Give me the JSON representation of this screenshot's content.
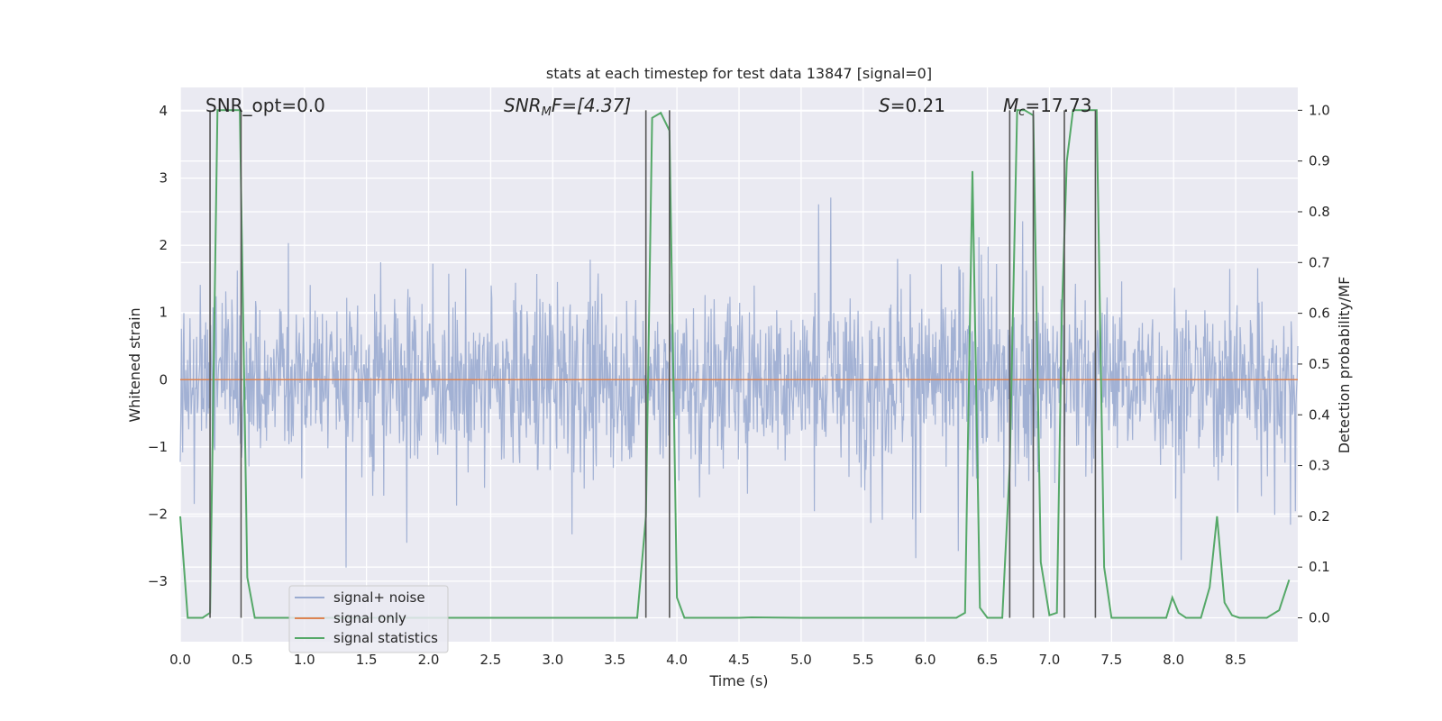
{
  "chart_data": {
    "type": "line",
    "title": "stats at each timestep for test data 13847 [signal=0]",
    "xlabel": "Time (s)",
    "ylabel": "Whitened strain",
    "y2label": "Detection probability/MF",
    "xlim": [
      0.0,
      9.0
    ],
    "ylim": [
      -3.9,
      4.35
    ],
    "y2lim": [
      -0.047,
      1.045
    ],
    "xticks": [
      "0.0",
      "0.5",
      "1.0",
      "1.5",
      "2.0",
      "2.5",
      "3.0",
      "3.5",
      "4.0",
      "4.5",
      "5.0",
      "5.5",
      "6.0",
      "6.5",
      "7.0",
      "7.5",
      "8.0",
      "8.5"
    ],
    "yticks": [
      "4",
      "3",
      "2",
      "1",
      "0",
      "−1",
      "−2",
      "−3"
    ],
    "y2ticks": [
      "1.0",
      "0.9",
      "0.8",
      "0.7",
      "0.6",
      "0.5",
      "0.4",
      "0.3",
      "0.2",
      "0.1",
      "0.0"
    ],
    "grid": true,
    "legend_position": "lower-left",
    "annotations": {
      "snr_opt": "SNR_opt=0.0",
      "snr_mf_main": "SNR",
      "snr_mf_sub": "M",
      "snr_mf_rest": "F=[4.37]",
      "s_main": "S",
      "s_rest": "=0.21",
      "mc_main": "M",
      "mc_sub": "c",
      "mc_rest": "=17.73"
    },
    "series": [
      {
        "name": "signal+ noise",
        "color": "#9aabd0",
        "description": "dense whitened noise, roughly within ±1.3, spikes to about ±3.5",
        "amplitude_core": 1.3,
        "spike_max": 4.0,
        "spike_min": -3.5
      },
      {
        "name": "signal only",
        "color": "#dd8452",
        "x": [
          0.0,
          9.0
        ],
        "y": [
          0.0,
          0.0
        ]
      },
      {
        "name": "signal statistics",
        "color": "#55a868",
        "axis": "right",
        "x": [
          0.0,
          0.06,
          0.18,
          0.24,
          0.3,
          0.36,
          0.42,
          0.48,
          0.54,
          0.6,
          1.0,
          2.0,
          3.0,
          3.5,
          3.68,
          3.75,
          3.8,
          3.87,
          3.94,
          4.0,
          4.06,
          4.5,
          4.6,
          5.0,
          5.5,
          6.0,
          6.25,
          6.32,
          6.38,
          6.44,
          6.5,
          6.62,
          6.68,
          6.74,
          6.8,
          6.87,
          6.93,
          7.0,
          7.06,
          7.1,
          7.14,
          7.19,
          7.26,
          7.34,
          7.38,
          7.44,
          7.5,
          7.6,
          7.94,
          7.99,
          8.04,
          8.1,
          8.16,
          8.22,
          8.29,
          8.35,
          8.41,
          8.47,
          8.53,
          8.6,
          8.75,
          8.85,
          8.93
        ],
        "y": [
          0.2,
          0.0,
          0.0,
          0.01,
          1.0,
          1.0,
          1.0,
          1.0,
          0.08,
          0.0,
          0.0,
          0.0,
          0.0,
          0.0,
          0.0,
          0.2,
          0.985,
          0.995,
          0.96,
          0.04,
          0.0,
          0.0,
          0.001,
          0.0,
          0.0,
          0.0,
          0.0,
          0.01,
          0.88,
          0.02,
          0.0,
          0.0,
          0.3,
          1.0,
          1.0,
          0.99,
          0.11,
          0.005,
          0.01,
          0.6,
          0.9,
          1.0,
          1.0,
          1.0,
          1.0,
          0.1,
          0.0,
          0.0,
          0.0,
          0.04,
          0.01,
          0.0,
          0.0,
          0.0,
          0.06,
          0.2,
          0.03,
          0.005,
          0.0,
          0.0,
          0.0,
          0.015,
          0.075
        ]
      }
    ],
    "vertical_lines": [
      0.24,
      0.49,
      3.75,
      3.94,
      6.68,
      6.87,
      7.12,
      7.37
    ]
  }
}
